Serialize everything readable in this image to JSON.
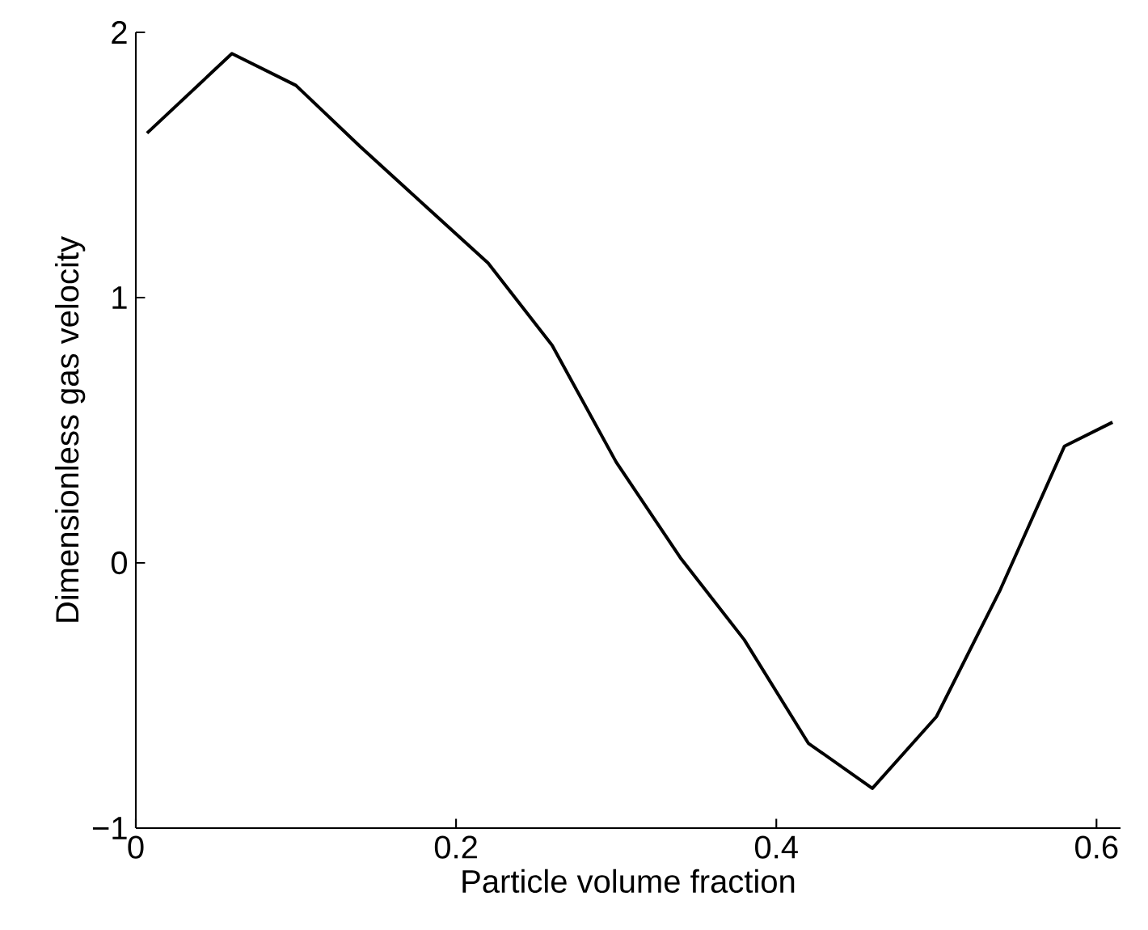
{
  "chart_data": {
    "type": "line",
    "xlabel": "Particle volume fraction",
    "ylabel": "Dimensionless gas velocity",
    "x": [
      0.007,
      0.06,
      0.1,
      0.14,
      0.18,
      0.22,
      0.26,
      0.3,
      0.34,
      0.38,
      0.42,
      0.46,
      0.5,
      0.54,
      0.58,
      0.61
    ],
    "series": [
      {
        "color": "#000000",
        "values": [
          1.62,
          1.92,
          1.8,
          1.57,
          1.35,
          1.13,
          0.82,
          0.38,
          0.02,
          -0.29,
          -0.68,
          -0.85,
          -0.58,
          -0.1,
          0.44,
          0.53
        ]
      }
    ],
    "xlim": [
      0,
      0.615
    ],
    "ylim": [
      -1,
      2
    ],
    "xticks": [
      0,
      0.2,
      0.4,
      0.6
    ],
    "yticks": [
      {
        "value": -1,
        "label": "−1"
      },
      0,
      1,
      2
    ],
    "grid": false,
    "marker": "none",
    "line_style": "solid"
  }
}
